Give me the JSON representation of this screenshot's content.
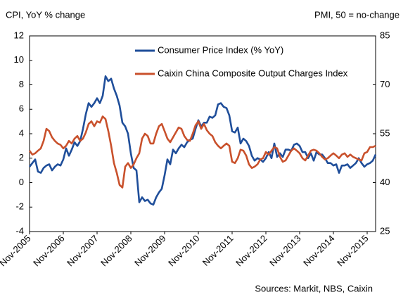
{
  "chart_data": {
    "type": "line",
    "y_axis_title": "CPI, YoY % change",
    "y2_axis_title": "PMI, 50 =  no-change",
    "source": "Sources: Markit, NBS, Caixin",
    "categories": [
      "Nov-2005",
      null,
      null,
      null,
      null,
      null,
      null,
      null,
      null,
      null,
      null,
      null,
      "Nov-2006",
      null,
      null,
      null,
      null,
      null,
      null,
      null,
      null,
      null,
      null,
      null,
      "Nov-2007",
      null,
      null,
      null,
      null,
      null,
      null,
      null,
      null,
      null,
      null,
      null,
      "Nov-2008",
      null,
      null,
      null,
      null,
      null,
      null,
      null,
      null,
      null,
      null,
      null,
      "Nov-2009",
      null,
      null,
      null,
      null,
      null,
      null,
      null,
      null,
      null,
      null,
      null,
      "Nov-2010",
      null,
      null,
      null,
      null,
      null,
      null,
      null,
      null,
      null,
      null,
      null,
      "Nov-2011",
      null,
      null,
      null,
      null,
      null,
      null,
      null,
      null,
      null,
      null,
      null,
      "Nov-2012",
      null,
      null,
      null,
      null,
      null,
      null,
      null,
      null,
      null,
      null,
      null,
      "Nov-2013",
      null,
      null,
      null,
      null,
      null,
      null,
      null,
      null,
      null,
      null,
      null,
      "Nov-2014",
      null,
      null,
      null,
      null,
      null,
      null,
      null,
      null,
      null,
      null,
      null,
      "Nov-2015",
      null,
      null,
      null
    ],
    "series": [
      {
        "name": "Consumer Price Index  (% YoY)",
        "color": "#1f4e9a",
        "axis": "y",
        "values": [
          1.3,
          1.6,
          1.9,
          0.9,
          0.8,
          1.2,
          1.4,
          1.5,
          1.0,
          1.3,
          1.5,
          1.4,
          1.9,
          2.8,
          2.2,
          2.7,
          3.3,
          3.0,
          3.4,
          4.4,
          5.6,
          6.5,
          6.2,
          6.5,
          6.9,
          6.5,
          7.1,
          8.7,
          8.3,
          8.5,
          7.7,
          7.1,
          6.3,
          4.9,
          4.6,
          4.0,
          2.4,
          1.2,
          1.0,
          -1.6,
          -1.2,
          -1.5,
          -1.4,
          -1.7,
          -1.8,
          -1.2,
          -0.8,
          -0.5,
          0.6,
          1.9,
          1.5,
          2.7,
          2.4,
          2.8,
          3.1,
          2.9,
          3.3,
          3.5,
          3.6,
          4.4,
          5.1,
          4.6,
          4.9,
          4.9,
          5.4,
          5.3,
          5.5,
          6.4,
          6.5,
          6.2,
          6.1,
          5.5,
          4.2,
          4.1,
          4.5,
          3.2,
          3.6,
          3.4,
          3.0,
          2.2,
          1.8,
          2.0,
          1.9,
          1.7,
          2.0,
          2.5,
          2.0,
          3.2,
          2.1,
          2.4,
          2.1,
          2.7,
          2.7,
          2.6,
          3.1,
          3.2,
          3.0,
          2.5,
          2.5,
          2.0,
          2.4,
          1.8,
          2.5,
          2.3,
          2.3,
          2.0,
          1.6,
          1.6,
          1.4,
          1.5,
          0.8,
          1.4,
          1.4,
          1.5,
          1.2,
          1.4,
          1.6,
          2.0,
          1.6,
          1.3,
          1.5,
          1.6,
          1.8,
          2.3
        ]
      },
      {
        "name": "Caixin China Composite Output Charges Index",
        "color": "#c9512c",
        "axis": "y2",
        "values": [
          49.8,
          48.6,
          49,
          49.8,
          50.5,
          52.8,
          56.5,
          55.8,
          53.9,
          52.8,
          52,
          51.6,
          50.5,
          51.3,
          52.8,
          52,
          53.5,
          54.3,
          52.8,
          53.5,
          55.4,
          58,
          58.8,
          57.3,
          58.8,
          58.4,
          60.3,
          59.5,
          55.8,
          51.3,
          46,
          43,
          39.3,
          38.5,
          44.9,
          46,
          44.5,
          45.6,
          47.5,
          49,
          53.5,
          55,
          54.3,
          52,
          52,
          55,
          57.3,
          58,
          55.8,
          53.5,
          52.4,
          53.9,
          55.4,
          56.9,
          56.5,
          54.3,
          53.1,
          52.8,
          55,
          57.6,
          58.8,
          56.5,
          58,
          56.1,
          55,
          54.3,
          52.4,
          51.3,
          50.5,
          51.3,
          52,
          51.3,
          46.4,
          46,
          47.5,
          50.1,
          49.8,
          48.3,
          45.6,
          44.5,
          44.9,
          45.6,
          47.1,
          47.5,
          49.4,
          48.6,
          49.8,
          50.9,
          50.5,
          47.9,
          46.4,
          46.8,
          48.3,
          49.8,
          50.5,
          49.8,
          49,
          47.5,
          46.8,
          48.3,
          49.8,
          50.1,
          49.8,
          49,
          47.9,
          47.1,
          47.5,
          48.3,
          49,
          48.3,
          47.5,
          48.6,
          49,
          47.9,
          48.6,
          47.9,
          47.5,
          47.1,
          46.8,
          49,
          49.4,
          50.9,
          50.9,
          51.3
        ]
      }
    ],
    "ylim": [
      -4,
      12
    ],
    "yticks": [
      -4,
      -2,
      0,
      2,
      4,
      6,
      8,
      10,
      12
    ],
    "y2lim": [
      25,
      85
    ],
    "y2ticks": [
      25,
      40,
      55,
      70,
      85
    ],
    "grid": false
  }
}
